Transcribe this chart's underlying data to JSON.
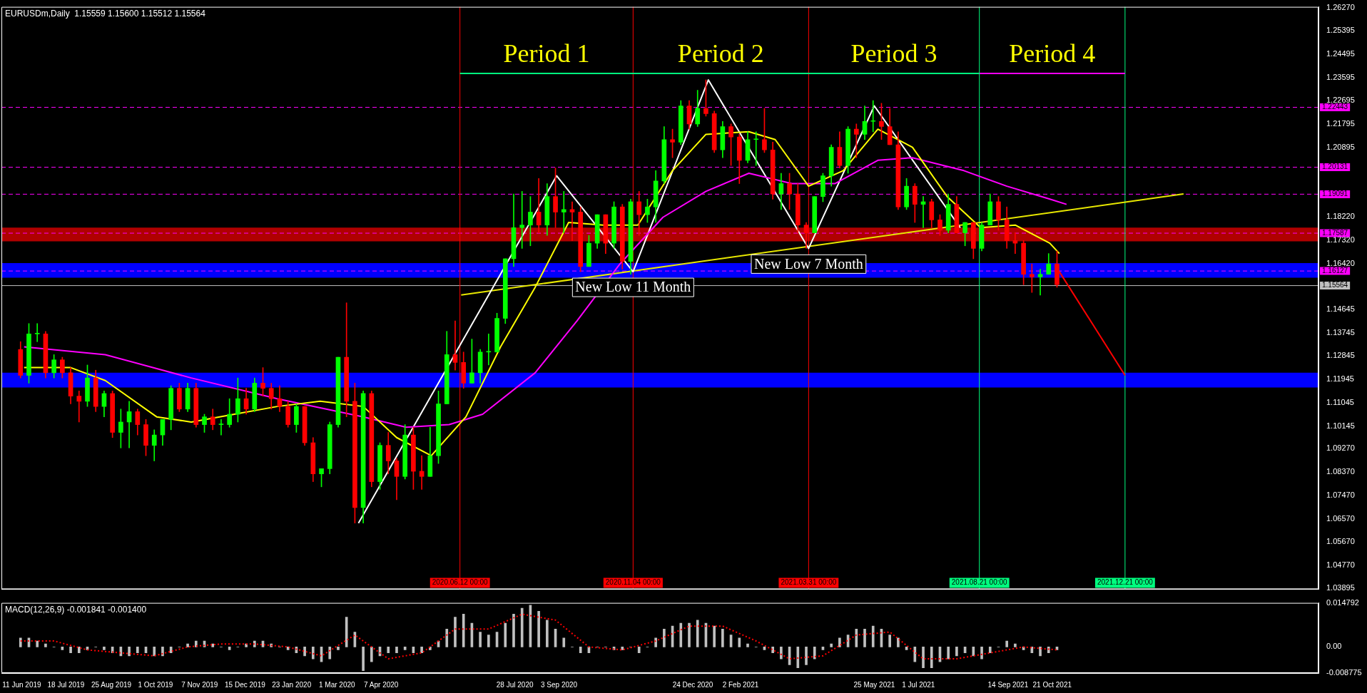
{
  "chart_data": [
    {
      "type": "candlestick",
      "title": "EURUSDm,Daily  1.15559 1.15600 1.15512 1.15564",
      "tick_labels": "y",
      "grid": false,
      "xlim": [
        "2019-05-25",
        "2022-06-01"
      ],
      "ylim": [
        1.0385,
        1.2632
      ],
      "yticks": [
        {
          "value": 1.2627,
          "label": "1.26270"
        },
        {
          "value": 1.25395,
          "label": "1.25395"
        },
        {
          "value": 1.24495,
          "label": "1.24495"
        },
        {
          "value": 1.23595,
          "label": "1.23595"
        },
        {
          "value": 1.22695,
          "label": "1.22695"
        },
        {
          "value": 1.21795,
          "label": "1.21795"
        },
        {
          "value": 1.20895,
          "label": "1.20895"
        },
        {
          "value": 1.1822,
          "label": "1.18220"
        },
        {
          "value": 1.1732,
          "label": "1.17320"
        },
        {
          "value": 1.1642,
          "label": "1.16420"
        },
        {
          "value": 1.14645,
          "label": "1.14645"
        },
        {
          "value": 1.13745,
          "label": "1.13745"
        },
        {
          "value": 1.12845,
          "label": "1.12845"
        },
        {
          "value": 1.11945,
          "label": "1.11945"
        },
        {
          "value": 1.11045,
          "label": "1.11045"
        },
        {
          "value": 1.10145,
          "label": "1.10145"
        },
        {
          "value": 1.0927,
          "label": "1.09270"
        },
        {
          "value": 1.0837,
          "label": "1.08370"
        },
        {
          "value": 1.0747,
          "label": "1.07470"
        },
        {
          "value": 1.0657,
          "label": "1.06570"
        },
        {
          "value": 1.0567,
          "label": "1.05670"
        },
        {
          "value": 1.0477,
          "label": "1.04770"
        },
        {
          "value": 1.03895,
          "label": "1.03895"
        }
      ],
      "x": [
        "2019-06-10",
        "2019-06-17",
        "2019-06-24",
        "2019-07-01",
        "2019-07-08",
        "2019-07-15",
        "2019-07-22",
        "2019-07-29",
        "2019-08-05",
        "2019-08-12",
        "2019-08-19",
        "2019-08-26",
        "2019-09-02",
        "2019-09-09",
        "2019-09-16",
        "2019-09-23",
        "2019-09-30",
        "2019-10-07",
        "2019-10-14",
        "2019-10-21",
        "2019-10-28",
        "2019-11-04",
        "2019-11-11",
        "2019-11-18",
        "2019-11-25",
        "2019-12-02",
        "2019-12-09",
        "2019-12-16",
        "2019-12-23",
        "2019-12-30",
        "2020-01-06",
        "2020-01-13",
        "2020-01-20",
        "2020-01-27",
        "2020-02-03",
        "2020-02-10",
        "2020-02-17",
        "2020-02-24",
        "2020-03-02",
        "2020-03-09",
        "2020-03-16",
        "2020-03-23",
        "2020-03-30",
        "2020-04-06",
        "2020-04-13",
        "2020-04-20",
        "2020-04-27",
        "2020-05-04",
        "2020-05-11",
        "2020-05-18",
        "2020-05-25",
        "2020-06-01",
        "2020-06-08",
        "2020-06-15",
        "2020-06-22",
        "2020-06-29",
        "2020-07-06",
        "2020-07-13",
        "2020-07-20",
        "2020-07-27",
        "2020-08-03",
        "2020-08-10",
        "2020-08-17",
        "2020-08-24",
        "2020-08-31",
        "2020-09-07",
        "2020-09-14",
        "2020-09-21",
        "2020-09-28",
        "2020-10-05",
        "2020-10-12",
        "2020-10-19",
        "2020-10-26",
        "2020-11-02",
        "2020-11-09",
        "2020-11-16",
        "2020-11-23",
        "2020-11-30",
        "2020-12-07",
        "2020-12-14",
        "2020-12-21",
        "2020-12-28",
        "2021-01-04",
        "2021-01-11",
        "2021-01-18",
        "2021-01-25",
        "2021-02-01",
        "2021-02-08",
        "2021-02-15",
        "2021-02-22",
        "2021-03-01",
        "2021-03-08",
        "2021-03-15",
        "2021-03-22",
        "2021-03-29",
        "2021-04-05",
        "2021-04-12",
        "2021-04-19",
        "2021-04-26",
        "2021-05-03",
        "2021-05-10",
        "2021-05-17",
        "2021-05-24",
        "2021-05-31",
        "2021-06-07",
        "2021-06-14",
        "2021-06-21",
        "2021-06-28",
        "2021-07-05",
        "2021-07-12",
        "2021-07-19",
        "2021-07-26",
        "2021-08-02",
        "2021-08-09",
        "2021-08-16",
        "2021-08-23",
        "2021-08-30",
        "2021-09-06",
        "2021-09-13",
        "2021-09-20",
        "2021-09-27",
        "2021-10-04",
        "2021-10-11",
        "2021-10-18",
        "2021-10-25"
      ],
      "ohlc": [
        [
          1.131,
          1.134,
          1.12,
          1.121
        ],
        [
          1.121,
          1.141,
          1.118,
          1.137
        ],
        [
          1.137,
          1.141,
          1.134,
          1.137
        ],
        [
          1.137,
          1.138,
          1.12,
          1.122
        ],
        [
          1.122,
          1.129,
          1.12,
          1.127
        ],
        [
          1.127,
          1.128,
          1.12,
          1.122
        ],
        [
          1.122,
          1.124,
          1.11,
          1.113
        ],
        [
          1.113,
          1.115,
          1.103,
          1.111
        ],
        [
          1.111,
          1.125,
          1.109,
          1.12
        ],
        [
          1.12,
          1.123,
          1.107,
          1.109
        ],
        [
          1.109,
          1.115,
          1.105,
          1.114
        ],
        [
          1.114,
          1.115,
          1.097,
          1.099
        ],
        [
          1.099,
          1.108,
          1.093,
          1.103
        ],
        [
          1.103,
          1.111,
          1.093,
          1.107
        ],
        [
          1.107,
          1.108,
          1.098,
          1.102
        ],
        [
          1.102,
          1.104,
          1.09,
          1.094
        ],
        [
          1.094,
          1.1,
          1.088,
          1.098
        ],
        [
          1.098,
          1.104,
          1.094,
          1.104
        ],
        [
          1.104,
          1.117,
          1.1,
          1.116
        ],
        [
          1.116,
          1.118,
          1.107,
          1.108
        ],
        [
          1.108,
          1.118,
          1.107,
          1.116
        ],
        [
          1.116,
          1.118,
          1.101,
          1.102
        ],
        [
          1.102,
          1.106,
          1.099,
          1.105
        ],
        [
          1.105,
          1.108,
          1.1,
          1.102
        ],
        [
          1.102,
          1.104,
          1.098,
          1.102
        ],
        [
          1.102,
          1.112,
          1.101,
          1.106
        ],
        [
          1.106,
          1.12,
          1.103,
          1.112
        ],
        [
          1.112,
          1.116,
          1.106,
          1.108
        ],
        [
          1.108,
          1.12,
          1.107,
          1.118
        ],
        [
          1.118,
          1.124,
          1.113,
          1.116
        ],
        [
          1.116,
          1.118,
          1.108,
          1.112
        ],
        [
          1.112,
          1.117,
          1.107,
          1.109
        ],
        [
          1.109,
          1.111,
          1.101,
          1.102
        ],
        [
          1.102,
          1.11,
          1.099,
          1.109
        ],
        [
          1.109,
          1.109,
          1.094,
          1.095
        ],
        [
          1.095,
          1.097,
          1.08,
          1.083
        ],
        [
          1.083,
          1.085,
          1.078,
          1.085
        ],
        [
          1.085,
          1.103,
          1.083,
          1.102
        ],
        [
          1.102,
          1.128,
          1.101,
          1.128
        ],
        [
          1.128,
          1.149,
          1.105,
          1.111
        ],
        [
          1.111,
          1.118,
          1.064,
          1.07
        ],
        [
          1.07,
          1.115,
          1.064,
          1.114
        ],
        [
          1.114,
          1.115,
          1.078,
          1.08
        ],
        [
          1.08,
          1.095,
          1.077,
          1.094
        ],
        [
          1.094,
          1.099,
          1.083,
          1.088
        ],
        [
          1.088,
          1.089,
          1.073,
          1.082
        ],
        [
          1.082,
          1.102,
          1.081,
          1.098
        ],
        [
          1.098,
          1.101,
          1.077,
          1.084
        ],
        [
          1.084,
          1.09,
          1.077,
          1.082
        ],
        [
          1.082,
          1.101,
          1.082,
          1.09
        ],
        [
          1.09,
          1.115,
          1.087,
          1.11
        ],
        [
          1.11,
          1.138,
          1.11,
          1.129
        ],
        [
          1.129,
          1.142,
          1.123,
          1.126
        ],
        [
          1.126,
          1.13,
          1.116,
          1.118
        ],
        [
          1.118,
          1.135,
          1.118,
          1.122
        ],
        [
          1.122,
          1.131,
          1.118,
          1.13
        ],
        [
          1.13,
          1.137,
          1.125,
          1.13
        ],
        [
          1.13,
          1.145,
          1.13,
          1.143
        ],
        [
          1.143,
          1.166,
          1.141,
          1.166
        ],
        [
          1.166,
          1.191,
          1.163,
          1.178
        ],
        [
          1.178,
          1.192,
          1.17,
          1.179
        ],
        [
          1.179,
          1.19,
          1.171,
          1.184
        ],
        [
          1.184,
          1.197,
          1.176,
          1.179
        ],
        [
          1.179,
          1.195,
          1.175,
          1.19
        ],
        [
          1.19,
          1.201,
          1.178,
          1.184
        ],
        [
          1.184,
          1.192,
          1.176,
          1.185
        ],
        [
          1.185,
          1.188,
          1.173,
          1.184
        ],
        [
          1.184,
          1.186,
          1.161,
          1.163
        ],
        [
          1.163,
          1.175,
          1.163,
          1.172
        ],
        [
          1.172,
          1.183,
          1.17,
          1.183
        ],
        [
          1.183,
          1.183,
          1.168,
          1.172
        ],
        [
          1.172,
          1.188,
          1.17,
          1.186
        ],
        [
          1.186,
          1.187,
          1.162,
          1.165
        ],
        [
          1.165,
          1.189,
          1.16,
          1.188
        ],
        [
          1.188,
          1.192,
          1.175,
          1.183
        ],
        [
          1.183,
          1.189,
          1.18,
          1.186
        ],
        [
          1.186,
          1.2,
          1.18,
          1.196
        ],
        [
          1.196,
          1.217,
          1.195,
          1.212
        ],
        [
          1.212,
          1.216,
          1.205,
          1.211
        ],
        [
          1.211,
          1.227,
          1.21,
          1.225
        ],
        [
          1.225,
          1.227,
          1.216,
          1.218
        ],
        [
          1.218,
          1.231,
          1.217,
          1.224
        ],
        [
          1.224,
          1.235,
          1.221,
          1.222
        ],
        [
          1.222,
          1.223,
          1.207,
          1.208
        ],
        [
          1.208,
          1.219,
          1.205,
          1.217
        ],
        [
          1.217,
          1.218,
          1.202,
          1.213
        ],
        [
          1.213,
          1.214,
          1.195,
          1.204
        ],
        [
          1.204,
          1.215,
          1.203,
          1.212
        ],
        [
          1.212,
          1.215,
          1.202,
          1.212
        ],
        [
          1.212,
          1.224,
          1.207,
          1.208
        ],
        [
          1.208,
          1.211,
          1.189,
          1.191
        ],
        [
          1.191,
          1.199,
          1.185,
          1.195
        ],
        [
          1.195,
          1.199,
          1.185,
          1.191
        ],
        [
          1.191,
          1.195,
          1.176,
          1.179
        ],
        [
          1.179,
          1.18,
          1.17,
          1.176
        ],
        [
          1.176,
          1.19,
          1.176,
          1.19
        ],
        [
          1.19,
          1.199,
          1.188,
          1.198
        ],
        [
          1.198,
          1.21,
          1.194,
          1.209
        ],
        [
          1.209,
          1.215,
          1.201,
          1.202
        ],
        [
          1.202,
          1.217,
          1.199,
          1.216
        ],
        [
          1.216,
          1.218,
          1.205,
          1.214
        ],
        [
          1.214,
          1.225,
          1.212,
          1.219
        ],
        [
          1.219,
          1.227,
          1.215,
          1.219
        ],
        [
          1.219,
          1.226,
          1.212,
          1.217
        ],
        [
          1.217,
          1.224,
          1.21,
          1.21
        ],
        [
          1.21,
          1.215,
          1.185,
          1.186
        ],
        [
          1.186,
          1.197,
          1.185,
          1.194
        ],
        [
          1.194,
          1.195,
          1.18,
          1.187
        ],
        [
          1.187,
          1.19,
          1.178,
          1.188
        ],
        [
          1.188,
          1.189,
          1.178,
          1.181
        ],
        [
          1.181,
          1.183,
          1.175,
          1.177
        ],
        [
          1.177,
          1.191,
          1.176,
          1.187
        ],
        [
          1.187,
          1.19,
          1.176,
          1.176
        ],
        [
          1.176,
          1.18,
          1.171,
          1.18
        ],
        [
          1.18,
          1.18,
          1.166,
          1.17
        ],
        [
          1.17,
          1.18,
          1.169,
          1.179
        ],
        [
          1.179,
          1.191,
          1.179,
          1.188
        ],
        [
          1.188,
          1.19,
          1.177,
          1.181
        ],
        [
          1.181,
          1.186,
          1.17,
          1.173
        ],
        [
          1.173,
          1.176,
          1.168,
          1.172
        ],
        [
          1.172,
          1.173,
          1.156,
          1.16
        ],
        [
          1.16,
          1.164,
          1.153,
          1.159
        ],
        [
          1.159,
          1.162,
          1.152,
          1.16
        ],
        [
          1.16,
          1.168,
          1.16,
          1.164
        ],
        [
          1.164,
          1.169,
          1.155,
          1.156
        ]
      ],
      "series": [
        {
          "type": "line",
          "color": "#ffff00",
          "x": [
            "2019-06-13",
            "2019-07-22",
            "2019-08-20",
            "2019-10-02",
            "2019-10-31",
            "2019-12-06",
            "2020-01-11",
            "2020-02-16",
            "2020-03-23",
            "2020-04-20",
            "2020-05-19",
            "2020-06-17",
            "2020-07-16",
            "2020-08-14",
            "2020-09-11",
            "2020-10-10",
            "2020-11-08",
            "2020-12-07",
            "2021-01-04",
            "2021-02-09",
            "2021-03-03",
            "2021-03-31",
            "2021-04-29",
            "2021-05-28",
            "2021-06-26",
            "2021-07-25",
            "2021-08-22",
            "2021-09-20",
            "2021-10-19",
            "2021-10-27"
          ],
          "values": [
            1.124,
            1.124,
            1.119,
            1.105,
            1.103,
            1.106,
            1.109,
            1.111,
            1.109,
            1.097,
            1.09,
            1.105,
            1.132,
            1.155,
            1.18,
            1.179,
            1.179,
            1.2,
            1.214,
            1.215,
            1.212,
            1.194,
            1.2,
            1.216,
            1.209,
            1.19,
            1.178,
            1.179,
            1.172,
            1.168
          ]
        },
        {
          "type": "line",
          "color": "#ff00ff",
          "x": [
            "2019-06-13",
            "2019-08-20",
            "2019-10-31",
            "2020-01-11",
            "2020-03-23",
            "2020-04-28",
            "2020-06-03",
            "2020-07-01",
            "2020-08-14",
            "2020-09-18",
            "2020-10-24",
            "2020-11-29",
            "2021-01-04",
            "2021-02-09",
            "2021-03-17",
            "2021-04-22",
            "2021-05-28",
            "2021-06-26",
            "2021-08-08",
            "2021-09-13",
            "2021-10-19",
            "2021-11-02"
          ],
          "values": [
            1.132,
            1.129,
            1.12,
            1.112,
            1.105,
            1.101,
            1.102,
            1.106,
            1.122,
            1.142,
            1.164,
            1.182,
            1.192,
            1.199,
            1.195,
            1.195,
            1.204,
            1.205,
            1.2,
            1.194,
            1.189,
            1.187
          ]
        },
        {
          "type": "line",
          "color": "#ffffff",
          "x": [
            "2020-03-19",
            "2020-09-01",
            "2020-11-04",
            "2021-01-06",
            "2021-03-31",
            "2021-05-25",
            "2021-08-05"
          ],
          "values": [
            1.064,
            1.198,
            1.161,
            1.235,
            1.17,
            1.225,
            1.178
          ]
        },
        {
          "type": "line",
          "color": "#e8e800",
          "x": [
            "2020-06-13",
            "2022-02-08"
          ],
          "values": [
            1.152,
            1.191
          ]
        },
        {
          "type": "line",
          "color": "#ff0000",
          "x": [
            "2021-10-27",
            "2021-12-21"
          ],
          "values": [
            1.161,
            1.121
          ]
        },
        {
          "type": "line",
          "color": "#00ff7f",
          "x": [
            "2020-06-12",
            "2021-08-21"
          ],
          "values": [
            1.2375,
            1.2375
          ]
        },
        {
          "type": "line",
          "color": "#ff00ff",
          "x": [
            "2021-08-21",
            "2021-12-21"
          ],
          "values": [
            1.2375,
            1.2375
          ]
        }
      ],
      "bands": [
        {
          "axis": "y",
          "from": 1.1587,
          "to": 1.1643,
          "color": "#0000ff"
        },
        {
          "axis": "y",
          "from": 1.1163,
          "to": 1.122,
          "color": "#0000ff"
        },
        {
          "axis": "y",
          "from": 1.1727,
          "to": 1.178,
          "color": "#b00000"
        }
      ],
      "ref_lines": [
        {
          "axis": "y",
          "value": 1.22443,
          "label": "1.22443",
          "color": "#ff00ff",
          "line_style": "dashed"
        },
        {
          "axis": "y",
          "value": 1.20131,
          "label": "1.20131",
          "color": "#ff00ff",
          "line_style": "dashed"
        },
        {
          "axis": "y",
          "value": 1.19091,
          "label": "1.19091",
          "color": "#ff00ff",
          "line_style": "dashed"
        },
        {
          "axis": "y",
          "value": 1.17587,
          "label": "1.17587",
          "color": "#ff00ff",
          "line_style": "dashed"
        },
        {
          "axis": "y",
          "value": 1.16127,
          "label": "1.16127",
          "color": "#ff00ff",
          "line_style": "dashed"
        },
        {
          "axis": "y",
          "value": 1.15564,
          "label": "1.15564",
          "color": "#c0c0c0",
          "line_style": "solid"
        },
        {
          "axis": "x",
          "value": "2020-06-12",
          "label": "2020.06.12 00:00",
          "color": "#ff0000",
          "line_style": "solid"
        },
        {
          "axis": "x",
          "value": "2020-11-04",
          "label": "2020.11.04 00:00",
          "color": "#ff0000",
          "line_style": "solid"
        },
        {
          "axis": "x",
          "value": "2021-03-31",
          "label": "2021.03.31 00:00",
          "color": "#ff0000",
          "line_style": "solid"
        },
        {
          "axis": "x",
          "value": "2021-08-21",
          "label": "2021.08.21 00:00",
          "color": "#00ff7f",
          "line_style": "solid"
        },
        {
          "axis": "x",
          "value": "2021-12-21",
          "label": "2021.12.21 00:00",
          "color": "#00ff7f",
          "line_style": "solid"
        }
      ],
      "annotations": [
        "Period 1",
        "Period 2",
        "Period 3",
        "Period 4",
        {
          "text": "New Low 11 Month",
          "x": "2020-11-04",
          "y": 1.161
        },
        {
          "text": "New Low 7 Month",
          "x": "2021-03-31",
          "y": 1.17
        }
      ]
    },
    {
      "type": "bar",
      "title": "MACD(12,26,9) -0.001841 -0.001400",
      "grid": false,
      "xlim": [
        "2019-05-25",
        "2022-06-01"
      ],
      "ylim": [
        -0.008775,
        0.014792
      ],
      "yticks": [
        0.014792,
        {
          "value": 0,
          "label": "0.00"
        },
        -0.008775
      ],
      "xticks": [
        {
          "value": "2019-06-11",
          "label": "11 Jun 2019"
        },
        {
          "value": "2019-07-18",
          "label": "18 Jul 2019"
        },
        {
          "value": "2019-08-25",
          "label": "25 Aug 2019"
        },
        {
          "value": "2019-10-01",
          "label": "1 Oct 2019"
        },
        {
          "value": "2019-11-07",
          "label": "7 Nov 2019"
        },
        {
          "value": "2019-12-15",
          "label": "15 Dec 2019"
        },
        {
          "value": "2020-01-23",
          "label": "23 Jan 2020"
        },
        {
          "value": "2020-03-01",
          "label": "1 Mar 2020"
        },
        {
          "value": "2020-04-07",
          "label": "7 Apr 2020"
        },
        {
          "value": "2020-07-28",
          "label": "28 Jul 2020"
        },
        {
          "value": "2020-09-03",
          "label": "3 Sep 2020"
        },
        {
          "value": "2020-12-24",
          "label": "24 Dec 2020"
        },
        {
          "value": "2021-02-02",
          "label": "2 Feb 2021"
        },
        {
          "value": "2021-05-25",
          "label": "25 May 2021"
        },
        {
          "value": "2021-07-01",
          "label": "1 Jul 2021"
        },
        {
          "value": "2021-09-14",
          "label": "14 Sep 2021"
        },
        {
          "value": "2021-10-21",
          "label": "21 Oct 2021"
        }
      ],
      "x": [
        "2019-06-10",
        "2019-06-17",
        "2019-06-24",
        "2019-07-01",
        "2019-07-08",
        "2019-07-15",
        "2019-07-22",
        "2019-07-29",
        "2019-08-05",
        "2019-08-12",
        "2019-08-19",
        "2019-08-26",
        "2019-09-02",
        "2019-09-09",
        "2019-09-16",
        "2019-09-23",
        "2019-09-30",
        "2019-10-07",
        "2019-10-14",
        "2019-10-21",
        "2019-10-28",
        "2019-11-04",
        "2019-11-11",
        "2019-11-18",
        "2019-11-25",
        "2019-12-02",
        "2019-12-09",
        "2019-12-16",
        "2019-12-23",
        "2019-12-30",
        "2020-01-06",
        "2020-01-13",
        "2020-01-20",
        "2020-01-27",
        "2020-02-03",
        "2020-02-10",
        "2020-02-17",
        "2020-02-24",
        "2020-03-02",
        "2020-03-09",
        "2020-03-16",
        "2020-03-23",
        "2020-03-30",
        "2020-04-06",
        "2020-04-13",
        "2020-04-20",
        "2020-04-27",
        "2020-05-04",
        "2020-05-11",
        "2020-05-18",
        "2020-05-25",
        "2020-06-01",
        "2020-06-08",
        "2020-06-15",
        "2020-06-22",
        "2020-06-29",
        "2020-07-06",
        "2020-07-13",
        "2020-07-20",
        "2020-07-27",
        "2020-08-03",
        "2020-08-10",
        "2020-08-17",
        "2020-08-24",
        "2020-08-31",
        "2020-09-07",
        "2020-09-14",
        "2020-09-21",
        "2020-09-28",
        "2020-10-05",
        "2020-10-12",
        "2020-10-19",
        "2020-10-26",
        "2020-11-02",
        "2020-11-09",
        "2020-11-16",
        "2020-11-23",
        "2020-11-30",
        "2020-12-07",
        "2020-12-14",
        "2020-12-21",
        "2020-12-28",
        "2021-01-04",
        "2021-01-11",
        "2021-01-18",
        "2021-01-25",
        "2021-02-01",
        "2021-02-08",
        "2021-02-15",
        "2021-02-22",
        "2021-03-01",
        "2021-03-08",
        "2021-03-15",
        "2021-03-22",
        "2021-03-29",
        "2021-04-05",
        "2021-04-12",
        "2021-04-19",
        "2021-04-26",
        "2021-05-03",
        "2021-05-10",
        "2021-05-17",
        "2021-05-24",
        "2021-05-31",
        "2021-06-07",
        "2021-06-14",
        "2021-06-21",
        "2021-06-28",
        "2021-07-05",
        "2021-07-12",
        "2021-07-19",
        "2021-07-26",
        "2021-08-02",
        "2021-08-09",
        "2021-08-16",
        "2021-08-23",
        "2021-08-30",
        "2021-09-06",
        "2021-09-13",
        "2021-09-20",
        "2021-09-27",
        "2021-10-04",
        "2021-10-11",
        "2021-10-18",
        "2021-10-25"
      ],
      "series": [
        {
          "type": "bar",
          "color": "#c0c0c0",
          "values": [
            0.003,
            0.003,
            0.002,
            0.001,
            0.0,
            -0.001,
            -0.002,
            -0.002,
            -0.001,
            0.0,
            -0.001,
            -0.002,
            -0.003,
            -0.003,
            -0.002,
            -0.002,
            -0.003,
            -0.003,
            -0.002,
            0.0,
            0.001,
            0.002,
            0.002,
            0.001,
            0.0,
            -0.001,
            0.0,
            0.001,
            0.002,
            0.002,
            0.001,
            0.0,
            -0.001,
            -0.002,
            -0.003,
            -0.004,
            -0.005,
            -0.004,
            -0.001,
            0.01,
            0.005,
            -0.008,
            -0.005,
            -0.003,
            -0.002,
            -0.002,
            -0.001,
            -0.002,
            -0.002,
            -0.001,
            0.002,
            0.006,
            0.01,
            0.011,
            0.008,
            0.005,
            0.004,
            0.005,
            0.008,
            0.011,
            0.013,
            0.014,
            0.012,
            0.009,
            0.006,
            0.003,
            0.0,
            -0.002,
            -0.002,
            0.0,
            0.0,
            -0.001,
            -0.001,
            0.0,
            -0.002,
            0.0,
            0.003,
            0.006,
            0.007,
            0.008,
            0.008,
            0.009,
            0.008,
            0.007,
            0.006,
            0.004,
            0.003,
            0.001,
            0.0,
            -0.001,
            -0.002,
            -0.004,
            -0.006,
            -0.007,
            -0.006,
            -0.004,
            -0.001,
            0.001,
            0.003,
            0.004,
            0.006,
            0.006,
            0.007,
            0.006,
            0.004,
            0.003,
            -0.001,
            -0.005,
            -0.007,
            -0.007,
            -0.005,
            -0.004,
            -0.003,
            -0.002,
            -0.003,
            -0.004,
            -0.002,
            0.0,
            0.002,
            0.001,
            -0.001,
            -0.002,
            -0.003,
            -0.002,
            -0.001
          ]
        },
        {
          "type": "line",
          "color": "#ff0000",
          "line_style": "dotted",
          "x": [
            "2019-06-10",
            "2019-07-08",
            "2019-08-05",
            "2019-09-02",
            "2019-09-30",
            "2019-10-28",
            "2019-11-25",
            "2019-12-23",
            "2020-01-20",
            "2020-02-17",
            "2020-03-16",
            "2020-04-13",
            "2020-05-11",
            "2020-06-08",
            "2020-07-06",
            "2020-08-03",
            "2020-08-31",
            "2020-09-28",
            "2020-10-26",
            "2020-11-23",
            "2020-12-21",
            "2021-01-18",
            "2021-02-15",
            "2021-03-15",
            "2021-04-12",
            "2021-05-10",
            "2021-06-07",
            "2021-07-05",
            "2021-08-02",
            "2021-08-30",
            "2021-09-27",
            "2021-10-25"
          ],
          "values": [
            0.002,
            0.002,
            -0.001,
            -0.002,
            -0.003,
            0.0,
            0.001,
            0.001,
            0.0,
            -0.003,
            0.004,
            -0.004,
            -0.002,
            0.006,
            0.006,
            0.011,
            0.009,
            0.0,
            -0.001,
            0.002,
            0.007,
            0.007,
            0.002,
            -0.004,
            -0.003,
            0.004,
            0.005,
            -0.004,
            -0.004,
            -0.002,
            0.0,
            -0.001
          ]
        }
      ]
    }
  ]
}
